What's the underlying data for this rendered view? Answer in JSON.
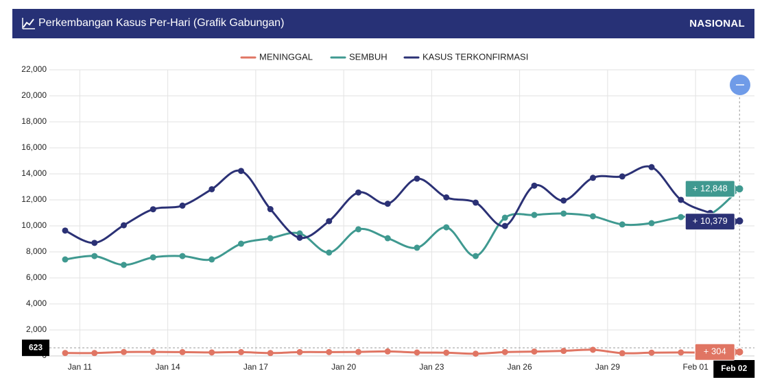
{
  "header": {
    "title": "Perkembangan Kasus Per-Hari (Grafik Gabungan)",
    "region": "NASIONAL"
  },
  "chart_data": {
    "type": "line",
    "categories": [
      null,
      "Jan 11",
      null,
      null,
      "Jan 14",
      null,
      null,
      "Jan 17",
      null,
      null,
      "Jan 20",
      null,
      null,
      "Jan 23",
      null,
      null,
      "Jan 26",
      null,
      null,
      "Jan 29",
      null,
      null,
      "Feb 01",
      "Feb 02"
    ],
    "series": [
      {
        "name": "MENINGGAL",
        "color": "#e07563",
        "values": [
          224,
          221,
          302,
          306,
          295,
          270,
          295,
          221,
          295,
          297,
          308,
          346,
          263,
          250,
          171,
          297,
          336,
          387,
          476,
          210,
          250,
          268,
          262,
          304
        ],
        "value_labels": [
          null,
          null,
          null,
          null,
          null,
          null,
          null,
          null,
          null,
          null,
          null,
          null,
          null,
          null,
          null,
          null,
          null,
          null,
          null,
          null,
          null,
          null,
          null,
          "+ 304"
        ]
      },
      {
        "name": "SEMBUH",
        "color": "#3f9990",
        "values": [
          7420,
          7680,
          7000,
          7580,
          7680,
          7420,
          8630,
          9050,
          9420,
          7950,
          9740,
          9050,
          8320,
          9890,
          7680,
          10630,
          10840,
          10950,
          10740,
          10110,
          10210,
          10680,
          10900,
          12848
        ],
        "value_labels": [
          null,
          null,
          null,
          null,
          null,
          null,
          null,
          null,
          null,
          null,
          null,
          null,
          null,
          null,
          null,
          null,
          null,
          null,
          null,
          null,
          null,
          null,
          null,
          "+ 12,848"
        ]
      },
      {
        "name": "KASUS TERKONFIRMASI",
        "color": "#2b3175",
        "values": [
          9640,
          8692,
          10047,
          11278,
          11557,
          12818,
          14224,
          11287,
          9086,
          10365,
          12568,
          11703,
          13632,
          12191,
          11788,
          9994,
          13094,
          11948,
          13695,
          13802,
          14518,
          12001,
          10994,
          10379
        ],
        "value_labels": [
          null,
          null,
          null,
          null,
          null,
          null,
          null,
          null,
          null,
          null,
          null,
          null,
          null,
          null,
          null,
          null,
          null,
          null,
          null,
          null,
          null,
          null,
          null,
          "+ 10,379"
        ]
      }
    ],
    "ylim": [
      0,
      22000
    ],
    "yticks": [
      0,
      {
        "value": 2000,
        "label": "2,000"
      },
      {
        "value": 4000,
        "label": "4,000"
      },
      {
        "value": 6000,
        "label": "6,000"
      },
      {
        "value": 8000,
        "label": "8,000"
      },
      {
        "value": 10000,
        "label": "10,000"
      },
      {
        "value": 12000,
        "label": "12,000"
      },
      {
        "value": 14000,
        "label": "14,000"
      },
      {
        "value": 16000,
        "label": "16,000"
      },
      {
        "value": 18000,
        "label": "18,000"
      },
      {
        "value": 20000,
        "label": "20,000"
      },
      {
        "value": 22000,
        "label": "22,000"
      }
    ],
    "crosshair_y": 623,
    "grid": true,
    "legend": "top"
  }
}
